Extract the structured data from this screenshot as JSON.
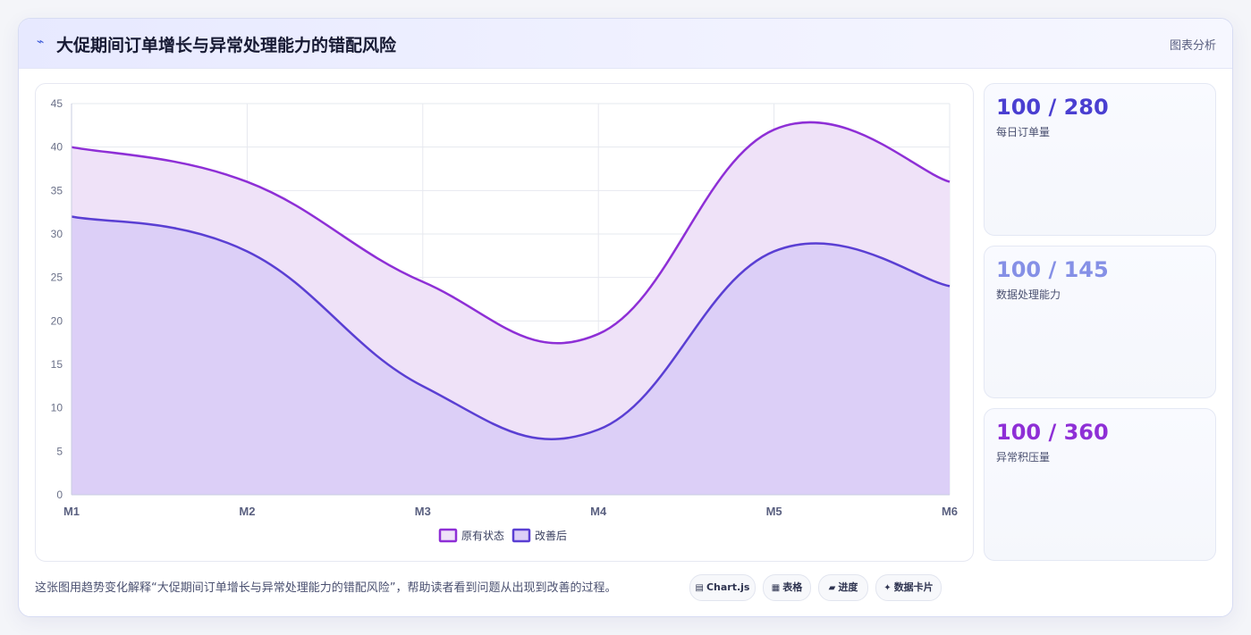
{
  "header": {
    "icon": "chart-line-icon",
    "icon_glyph": "⌁",
    "title": "大促期间订单增长与异常处理能力的错配风险",
    "tag": "图表分析"
  },
  "stats": [
    {
      "value": "100 / 280",
      "label": "每日订单量",
      "color": "#4a3fd1"
    },
    {
      "value": "100 / 145",
      "label": "数据处理能力",
      "color": "#8590e6"
    },
    {
      "value": "100 / 360",
      "label": "异常积压量",
      "color": "#8e2fd6"
    }
  ],
  "footer": {
    "caption": "这张图用趋势变化解释“大促期间订单增长与异常处理能力的错配风险”，帮助读者看到问题从出现到改善的过程。",
    "pills": [
      {
        "icon": "▤",
        "label": "Chart.js"
      },
      {
        "icon": "▦",
        "label": "表格"
      },
      {
        "icon": "▰",
        "label": "进度"
      },
      {
        "icon": "✦",
        "label": "数据卡片"
      }
    ]
  },
  "chart_data": {
    "type": "area",
    "categories": [
      "M1",
      "M2",
      "M3",
      "M4",
      "M5",
      "M6"
    ],
    "series": [
      {
        "name": "原有状态",
        "values": [
          40,
          36,
          24.5,
          18.5,
          42,
          36
        ],
        "color": "#8e2fd6",
        "fill": "#efe2f8"
      },
      {
        "name": "改善后",
        "values": [
          32,
          28,
          12.5,
          7.5,
          28,
          24
        ],
        "color": "#5a3fd3",
        "fill": "#dccff7"
      }
    ],
    "ylim": [
      0,
      45
    ],
    "yticks": [
      0,
      5,
      10,
      15,
      20,
      25,
      30,
      35,
      40,
      45
    ],
    "grid": true,
    "legend": "bottom"
  }
}
